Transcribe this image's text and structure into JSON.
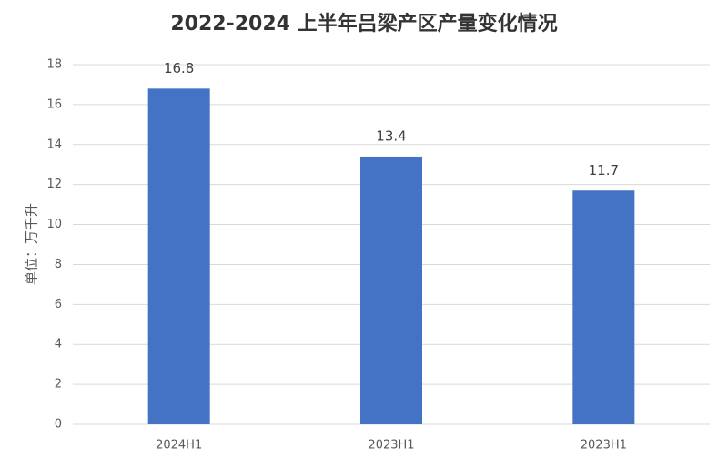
{
  "chart_data": {
    "type": "bar",
    "title": "2022-2024 上半年吕梁产区产量变化情况",
    "y_label": "单位：万千升",
    "categories": [
      "2024H1",
      "2023H1",
      "2023H1"
    ],
    "values": [
      16.8,
      13.4,
      11.7
    ],
    "color": "#4472c4",
    "ylim": [
      0,
      18
    ],
    "yticks": [
      0,
      2,
      4,
      6,
      8,
      10,
      12,
      14,
      16,
      18
    ],
    "grid": true
  }
}
